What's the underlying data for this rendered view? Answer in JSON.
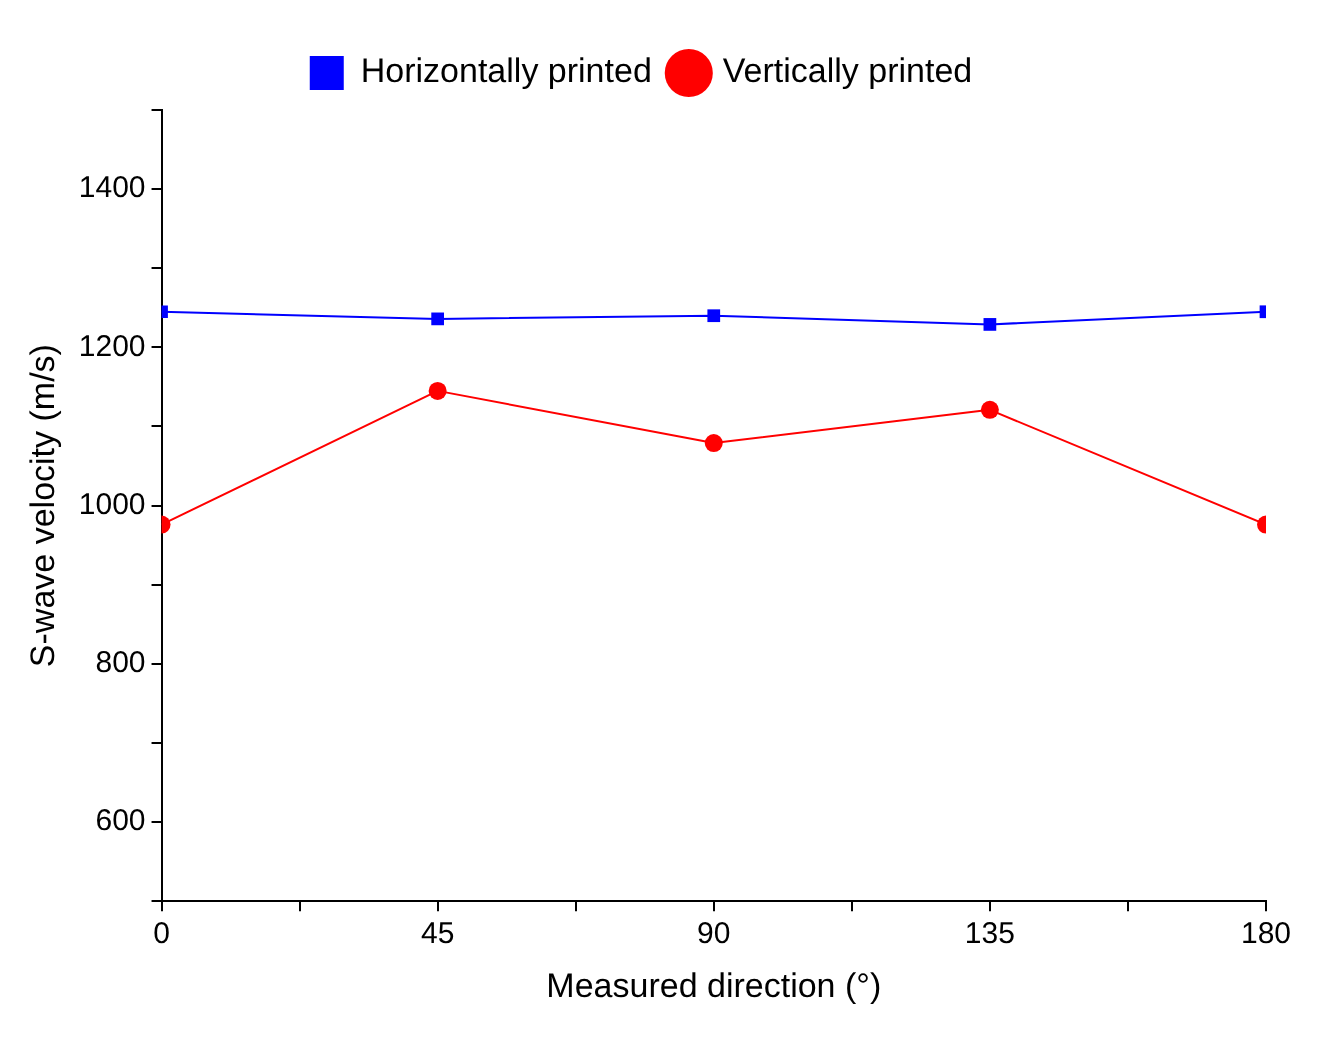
{
  "chart_data": {
    "type": "line",
    "xlabel": "Measured direction (°)",
    "ylabel": "S-wave velocity (m/s)",
    "x": [
      0,
      45,
      90,
      135,
      180
    ],
    "series": [
      {
        "name": "Horizontally printed",
        "color": "#0000ff",
        "marker": "square",
        "values": [
          1245,
          1236,
          1240,
          1229,
          1245
        ]
      },
      {
        "name": "Vertically printed",
        "color": "#ff0000",
        "marker": "circle",
        "values": [
          976,
          1145,
          1079,
          1121,
          976
        ]
      }
    ],
    "xlim": [
      0,
      180
    ],
    "xticks": [
      0,
      {
        "value": 22.5,
        "label": null
      },
      45,
      {
        "value": 67.5,
        "label": null
      },
      90,
      {
        "value": 112.5,
        "label": null
      },
      135,
      {
        "value": 157.5,
        "label": null
      },
      180
    ],
    "ylim": [
      500,
      1500
    ],
    "yticks": [
      {
        "value": 500,
        "label": null
      },
      600,
      {
        "value": 700,
        "label": null
      },
      800,
      {
        "value": 900,
        "label": null
      },
      1000,
      {
        "value": 1100,
        "label": null
      },
      1200,
      {
        "value": 1300,
        "label": null
      },
      1400,
      {
        "value": 1500,
        "label": null
      }
    ],
    "grid": false,
    "legend": "top",
    "line_style": "solid"
  }
}
